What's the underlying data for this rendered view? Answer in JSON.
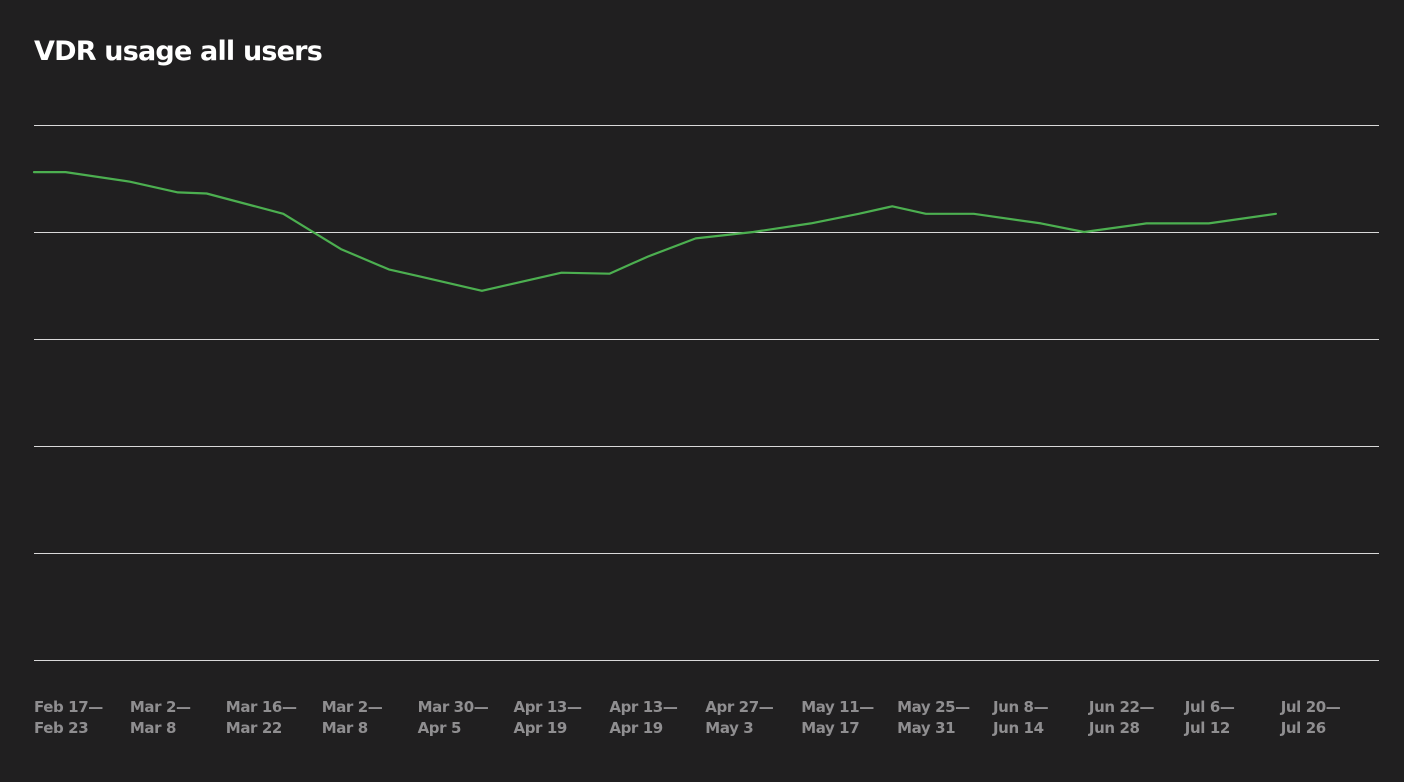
{
  "title": "VDR usage all users",
  "colors": {
    "background": "#201f20",
    "gridline": "#d9d9d9",
    "line": "#4caf50",
    "tick_text": "#8f8e90",
    "title_text": "#ffffff"
  },
  "chart_data": {
    "type": "line",
    "title": "VDR usage all users",
    "xlabel": "",
    "ylabel": "",
    "grid": true,
    "legend": "none",
    "y_tick_labels_shown": false,
    "ylim": [
      0,
      5
    ],
    "gridline_count": 6,
    "categories": [
      {
        "line1": "Feb 17—",
        "line2": "Feb 23"
      },
      {
        "line1": "Mar 2—",
        "line2": "Mar 8"
      },
      {
        "line1": "Mar 16—",
        "line2": "Mar 22"
      },
      {
        "line1": "Mar 2—",
        "line2": "Mar 8"
      },
      {
        "line1": "Mar 30—",
        "line2": "Apr 5"
      },
      {
        "line1": "Apr 13—",
        "line2": "Apr 19"
      },
      {
        "line1": "Apr 13—",
        "line2": "Apr 19"
      },
      {
        "line1": "Apr 27—",
        "line2": "May 3"
      },
      {
        "line1": "May 11—",
        "line2": "May 17"
      },
      {
        "line1": "May 25—",
        "line2": "May 31"
      },
      {
        "line1": "Jun 8—",
        "line2": "Jun 14"
      },
      {
        "line1": "Jun 22—",
        "line2": "Jun 28"
      },
      {
        "line1": "Jul 6—",
        "line2": "Jul 12"
      },
      {
        "line1": "Jul 20—",
        "line2": "Jul 26"
      }
    ],
    "series": [
      {
        "points": [
          {
            "x": 0.0,
            "y": 4.56
          },
          {
            "x": 0.33,
            "y": 4.56
          },
          {
            "x": 1.0,
            "y": 4.47
          },
          {
            "x": 1.5,
            "y": 4.37
          },
          {
            "x": 1.8,
            "y": 4.36
          },
          {
            "x": 2.6,
            "y": 4.17
          },
          {
            "x": 3.2,
            "y": 3.84
          },
          {
            "x": 3.7,
            "y": 3.65
          },
          {
            "x": 4.0,
            "y": 3.59
          },
          {
            "x": 4.67,
            "y": 3.45
          },
          {
            "x": 5.5,
            "y": 3.62
          },
          {
            "x": 6.0,
            "y": 3.61
          },
          {
            "x": 6.4,
            "y": 3.77
          },
          {
            "x": 6.9,
            "y": 3.94
          },
          {
            "x": 7.5,
            "y": 4.0
          },
          {
            "x": 8.1,
            "y": 4.08
          },
          {
            "x": 8.6,
            "y": 4.17
          },
          {
            "x": 8.95,
            "y": 4.24
          },
          {
            "x": 9.3,
            "y": 4.17
          },
          {
            "x": 9.8,
            "y": 4.17
          },
          {
            "x": 10.5,
            "y": 4.08
          },
          {
            "x": 10.95,
            "y": 4.0
          },
          {
            "x": 11.6,
            "y": 4.08
          },
          {
            "x": 12.25,
            "y": 4.08
          },
          {
            "x": 12.95,
            "y": 4.17
          }
        ]
      }
    ]
  }
}
